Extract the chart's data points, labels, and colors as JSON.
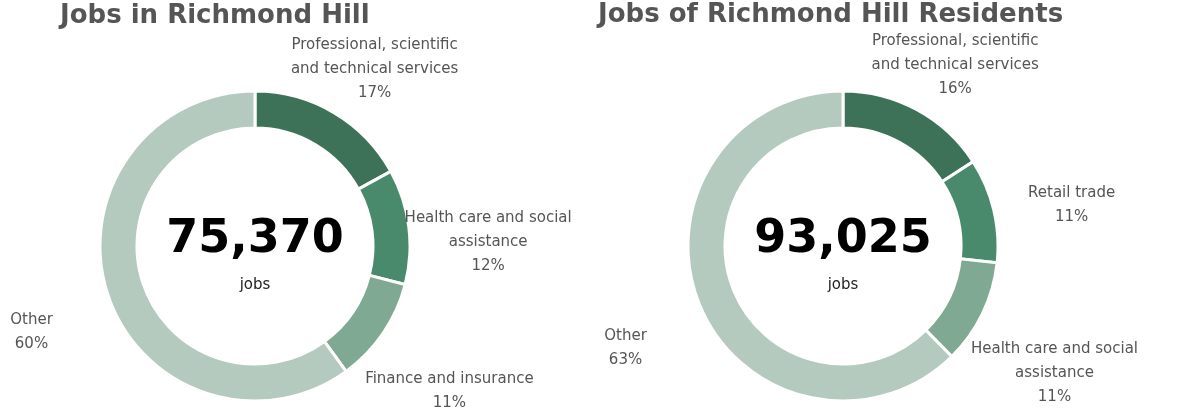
{
  "chart_data": [
    {
      "type": "donut",
      "title": "Jobs in Richmond Hill",
      "categories": [
        "Professional, scientific and technical services",
        "Health care and social assistance",
        "Finance and insurance",
        "Other"
      ],
      "values": [
        17,
        12,
        11,
        60
      ],
      "value_labels": [
        "17%",
        "12%",
        "11%",
        "60%"
      ],
      "colors": [
        "#3d7259",
        "#4a8a6c",
        "#80a993",
        "#b5cabe"
      ],
      "annotations": [
        "75,370",
        "jobs"
      ]
    },
    {
      "type": "donut",
      "title": "Jobs of Richmond Hill Residents",
      "categories": [
        "Professional, scientific and technical services",
        "Retail trade",
        "Health care and social assistance",
        "Other"
      ],
      "values": [
        16,
        11,
        11,
        63
      ],
      "value_labels": [
        "16%",
        "11%",
        "11%",
        "63%"
      ],
      "colors": [
        "#3d7259",
        "#4a8a6c",
        "#80a993",
        "#b5cabe"
      ],
      "annotations": [
        "93,025",
        "jobs"
      ]
    }
  ]
}
